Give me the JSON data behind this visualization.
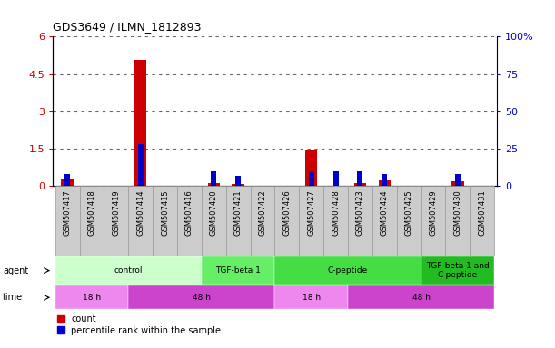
{
  "title": "GDS3649 / ILMN_1812893",
  "samples": [
    "GSM507417",
    "GSM507418",
    "GSM507419",
    "GSM507414",
    "GSM507415",
    "GSM507416",
    "GSM507420",
    "GSM507421",
    "GSM507422",
    "GSM507426",
    "GSM507427",
    "GSM507428",
    "GSM507423",
    "GSM507424",
    "GSM507425",
    "GSM507429",
    "GSM507430",
    "GSM507431"
  ],
  "count_values": [
    0.28,
    0.0,
    0.0,
    5.05,
    0.0,
    0.0,
    0.12,
    0.08,
    0.0,
    0.0,
    1.42,
    0.0,
    0.12,
    0.22,
    0.0,
    0.0,
    0.18,
    0.0
  ],
  "percentile_values": [
    8.0,
    0.0,
    0.0,
    28.0,
    0.0,
    0.0,
    10.0,
    7.0,
    0.0,
    0.0,
    10.0,
    10.0,
    10.0,
    8.0,
    0.0,
    0.0,
    8.0,
    0.0
  ],
  "ylim_left": [
    0,
    6
  ],
  "ylim_right": [
    0,
    100
  ],
  "yticks_left": [
    0,
    1.5,
    3,
    4.5,
    6
  ],
  "yticks_right": [
    0,
    25,
    50,
    75,
    100
  ],
  "count_color": "#cc0000",
  "percentile_color": "#0000cc",
  "agent_groups": [
    {
      "label": "control",
      "start": 0,
      "end": 5,
      "color": "#ccffcc"
    },
    {
      "label": "TGF-beta 1",
      "start": 6,
      "end": 8,
      "color": "#66ee66"
    },
    {
      "label": "C-peptide",
      "start": 9,
      "end": 14,
      "color": "#44dd44"
    },
    {
      "label": "TGF-beta 1 and\nC-peptide",
      "start": 15,
      "end": 17,
      "color": "#22bb22"
    }
  ],
  "time_groups": [
    {
      "label": "18 h",
      "start": 0,
      "end": 2,
      "color": "#ee88ee"
    },
    {
      "label": "48 h",
      "start": 3,
      "end": 8,
      "color": "#cc44cc"
    },
    {
      "label": "18 h",
      "start": 9,
      "end": 11,
      "color": "#ee88ee"
    },
    {
      "label": "48 h",
      "start": 12,
      "end": 17,
      "color": "#cc44cc"
    }
  ],
  "agent_label": "agent",
  "time_label": "time",
  "legend_count": "count",
  "legend_percentile": "percentile rank within the sample",
  "sample_box_color": "#cccccc",
  "sample_box_edge": "#999999"
}
